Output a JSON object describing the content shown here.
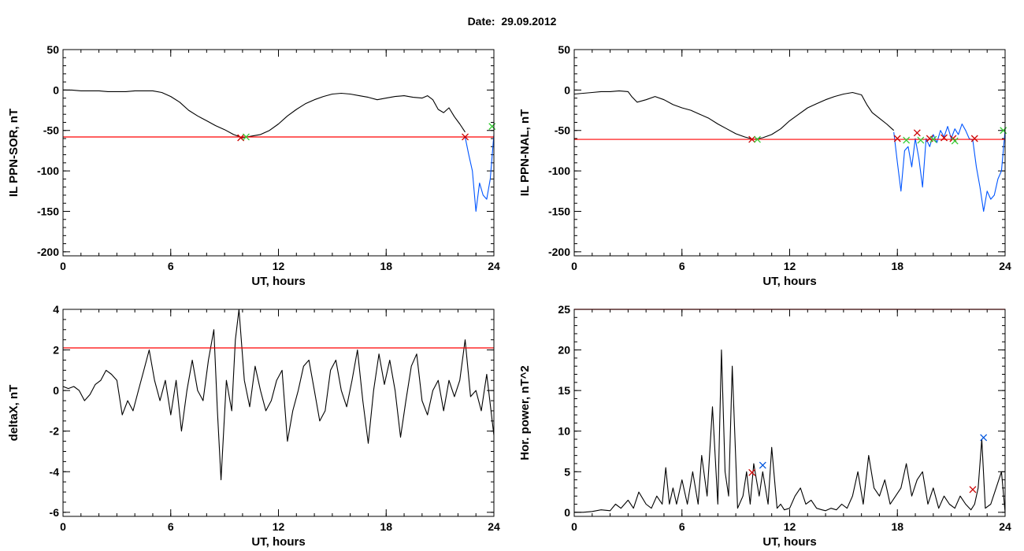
{
  "header": {
    "date_label": "Date:  29.09.2012"
  },
  "colors": {
    "trace": "#000000",
    "threshold": "#ff0000",
    "storm": "#0055ff",
    "marker_red": "#cc0000",
    "marker_green": "#33cc33",
    "marker_blue": "#0055dd"
  },
  "chart_data": [
    {
      "id": "sor",
      "type": "line",
      "ylabel": "IL PPN-SOR, nT",
      "xlabel": "UT, hours",
      "xlim": [
        0,
        24
      ],
      "ylim": [
        -205,
        50
      ],
      "xticks": [
        0,
        6,
        12,
        18,
        24
      ],
      "xtick_labels": [
        "0",
        "6",
        "12",
        "18",
        "24"
      ],
      "yticks": [
        50,
        0,
        -50,
        -100,
        -150,
        -200
      ],
      "ytick_labels": [
        "50",
        "0",
        "-50",
        "-100",
        "-150",
        "-200"
      ],
      "x_minor": 1,
      "y_minor": 10,
      "threshold": -58,
      "series": [
        {
          "role": "main",
          "color_key": "trace",
          "x": [
            0,
            0.5,
            1,
            1.5,
            2,
            2.5,
            3,
            3.5,
            4,
            4.5,
            5,
            5.5,
            6,
            6.5,
            7,
            7.5,
            8,
            8.5,
            9,
            9.5,
            10,
            10.5,
            11,
            11.5,
            12,
            12.5,
            13,
            13.5,
            14,
            14.5,
            15,
            15.5,
            16,
            16.5,
            17,
            17.5,
            18,
            18.5,
            19,
            19.5,
            20,
            20.3,
            20.6,
            20.9,
            21.2,
            21.5,
            21.8,
            22.1,
            22.4
          ],
          "y": [
            0,
            0,
            -1,
            -1,
            -1,
            -2,
            -2,
            -2,
            -1,
            -1,
            -1,
            -3,
            -8,
            -15,
            -25,
            -32,
            -38,
            -44,
            -49,
            -55,
            -59,
            -57,
            -55,
            -50,
            -42,
            -32,
            -24,
            -17,
            -12,
            -8,
            -5,
            -4,
            -5,
            -7,
            -9,
            -12,
            -10,
            -8,
            -7,
            -9,
            -10,
            -7,
            -12,
            -24,
            -28,
            -22,
            -33,
            -42,
            -52
          ]
        },
        {
          "role": "storm",
          "color_key": "storm",
          "x": [
            22.4,
            22.6,
            22.8,
            23,
            23.2,
            23.4,
            23.6,
            23.8,
            24
          ],
          "y": [
            -58,
            -80,
            -100,
            -150,
            -115,
            -130,
            -135,
            -110,
            -55
          ]
        }
      ],
      "markers": [
        {
          "x": 9.9,
          "y": -59,
          "color_key": "marker_red"
        },
        {
          "x": 10.2,
          "y": -58,
          "color_key": "marker_green"
        },
        {
          "x": 22.4,
          "y": -58,
          "color_key": "marker_red"
        },
        {
          "x": 23.9,
          "y": -45,
          "color_key": "marker_green"
        }
      ]
    },
    {
      "id": "nal",
      "type": "line",
      "ylabel": "IL PPN-NAL, nT",
      "xlabel": "UT, hours",
      "xlim": [
        0,
        24
      ],
      "ylim": [
        -205,
        50
      ],
      "xticks": [
        0,
        6,
        12,
        18,
        24
      ],
      "xtick_labels": [
        "0",
        "6",
        "12",
        "18",
        "24"
      ],
      "yticks": [
        50,
        0,
        -50,
        -100,
        -150,
        -200
      ],
      "ytick_labels": [
        "50",
        "0",
        "-50",
        "-100",
        "-150",
        "-200"
      ],
      "x_minor": 1,
      "y_minor": 10,
      "threshold": -61,
      "series": [
        {
          "role": "main",
          "color_key": "trace",
          "x": [
            0,
            0.5,
            1,
            1.5,
            2,
            2.5,
            3,
            3.2,
            3.5,
            4,
            4.5,
            5,
            5.5,
            6,
            6.5,
            7,
            7.5,
            8,
            8.5,
            9,
            9.5,
            10,
            10.5,
            11,
            11.5,
            12,
            12.5,
            13,
            13.5,
            14,
            14.5,
            15,
            15.5,
            16,
            16.3,
            16.6,
            17,
            17.4,
            17.8
          ],
          "y": [
            -5,
            -4,
            -3,
            -2,
            -2,
            -1,
            -2,
            -8,
            -15,
            -12,
            -8,
            -12,
            -18,
            -22,
            -25,
            -30,
            -35,
            -42,
            -48,
            -54,
            -58,
            -61,
            -59,
            -55,
            -48,
            -38,
            -30,
            -22,
            -17,
            -12,
            -8,
            -5,
            -3,
            -6,
            -18,
            -28,
            -35,
            -42,
            -50
          ]
        },
        {
          "role": "storm",
          "color_key": "storm",
          "x": [
            17.8,
            18,
            18.2,
            18.4,
            18.6,
            18.8,
            19,
            19.2,
            19.4,
            19.6,
            19.8,
            20,
            20.2,
            20.4,
            20.6,
            20.8,
            21,
            21.2,
            21.4,
            21.6,
            21.8,
            22,
            22.2,
            22.4,
            22.6,
            22.8,
            23,
            23.2,
            23.4,
            23.6,
            23.8,
            24
          ],
          "y": [
            -52,
            -90,
            -125,
            -75,
            -70,
            -95,
            -60,
            -85,
            -120,
            -60,
            -70,
            -55,
            -65,
            -50,
            -58,
            -45,
            -60,
            -48,
            -55,
            -42,
            -50,
            -60,
            -62,
            -95,
            -120,
            -150,
            -125,
            -135,
            -130,
            -110,
            -100,
            -50
          ]
        }
      ],
      "markers": [
        {
          "x": 9.9,
          "y": -61,
          "color_key": "marker_red"
        },
        {
          "x": 10.2,
          "y": -61,
          "color_key": "marker_green"
        },
        {
          "x": 18.0,
          "y": -60,
          "color_key": "marker_red"
        },
        {
          "x": 18.5,
          "y": -62,
          "color_key": "marker_green"
        },
        {
          "x": 19.1,
          "y": -53,
          "color_key": "marker_red"
        },
        {
          "x": 19.3,
          "y": -62,
          "color_key": "marker_green"
        },
        {
          "x": 19.8,
          "y": -60,
          "color_key": "marker_red"
        },
        {
          "x": 20.0,
          "y": -61,
          "color_key": "marker_green"
        },
        {
          "x": 20.6,
          "y": -59,
          "color_key": "marker_red"
        },
        {
          "x": 21.1,
          "y": -60,
          "color_key": "marker_red"
        },
        {
          "x": 21.2,
          "y": -63,
          "color_key": "marker_green"
        },
        {
          "x": 22.3,
          "y": -60,
          "color_key": "marker_red"
        },
        {
          "x": 23.9,
          "y": -50,
          "color_key": "marker_green"
        }
      ]
    },
    {
      "id": "deltax",
      "type": "line",
      "ylabel": "deltaX, nT",
      "xlabel": "UT, hours",
      "xlim": [
        0,
        24
      ],
      "ylim": [
        -6.2,
        4
      ],
      "xticks": [
        0,
        6,
        12,
        18,
        24
      ],
      "xtick_labels": [
        "0",
        "6",
        "12",
        "18",
        "24"
      ],
      "yticks": [
        4,
        2,
        0,
        -2,
        -4,
        -6
      ],
      "ytick_labels": [
        "4",
        "2",
        "0",
        "-2",
        "-4",
        "-6"
      ],
      "x_minor": 1,
      "y_minor": 0.5,
      "threshold": 2.1,
      "series": [
        {
          "role": "main",
          "color_key": "trace",
          "x": [
            0,
            0.3,
            0.6,
            0.9,
            1.2,
            1.5,
            1.8,
            2.1,
            2.4,
            2.7,
            3,
            3.3,
            3.6,
            3.9,
            4.2,
            4.5,
            4.8,
            5.1,
            5.4,
            5.7,
            6,
            6.3,
            6.6,
            6.9,
            7.2,
            7.5,
            7.8,
            8.1,
            8.4,
            8.6,
            8.8,
            9.1,
            9.4,
            9.6,
            9.8,
            10.1,
            10.4,
            10.7,
            11,
            11.3,
            11.6,
            11.9,
            12.2,
            12.5,
            12.8,
            13.1,
            13.4,
            13.7,
            14,
            14.3,
            14.6,
            14.9,
            15.2,
            15.5,
            15.8,
            16.1,
            16.4,
            16.7,
            17,
            17.3,
            17.6,
            17.9,
            18.2,
            18.5,
            18.8,
            19.1,
            19.4,
            19.7,
            20,
            20.3,
            20.6,
            20.9,
            21.2,
            21.5,
            21.8,
            22.1,
            22.4,
            22.7,
            23,
            23.3,
            23.6,
            24
          ],
          "y": [
            0.2,
            0.1,
            0.2,
            0,
            -0.5,
            -0.2,
            0.3,
            0.5,
            1,
            0.8,
            0.5,
            -1.2,
            -0.5,
            -1,
            0,
            1,
            2,
            0.5,
            -0.5,
            0.5,
            -1.2,
            0.5,
            -2,
            0,
            1.5,
            0,
            -0.5,
            1.5,
            3,
            -1,
            -4.4,
            0.5,
            -1,
            2.5,
            4,
            0.5,
            -0.8,
            1.2,
            0,
            -1,
            -0.5,
            0.5,
            1,
            -2.5,
            -1,
            0,
            1.2,
            1.5,
            0,
            -1.5,
            -1,
            1,
            1.5,
            0,
            -0.8,
            0.5,
            2,
            -0.5,
            -2.6,
            0,
            1.8,
            0.3,
            1.5,
            0,
            -2.3,
            -0.5,
            1.2,
            1.8,
            -0.5,
            -1.2,
            0,
            0.5,
            -1,
            0.5,
            -0.3,
            0.5,
            2.5,
            -0.3,
            0,
            -1,
            0.8,
            -2.2
          ]
        }
      ],
      "markers": []
    },
    {
      "id": "power",
      "type": "line",
      "ylabel": "Hor. power, nT^2",
      "xlabel": "UT, hours",
      "xlim": [
        0,
        24
      ],
      "ylim": [
        -0.5,
        25
      ],
      "xticks": [
        0,
        6,
        12,
        18,
        24
      ],
      "xtick_labels": [
        "0",
        "6",
        "12",
        "18",
        "24"
      ],
      "yticks": [
        25,
        20,
        15,
        10,
        5,
        0
      ],
      "ytick_labels": [
        "25",
        "20",
        "15",
        "10",
        "5",
        "0"
      ],
      "x_minor": 1,
      "y_minor": 1,
      "threshold": 25,
      "series": [
        {
          "role": "main",
          "color_key": "trace",
          "x": [
            0,
            0.5,
            1,
            1.5,
            2,
            2.3,
            2.6,
            3,
            3.3,
            3.6,
            4,
            4.3,
            4.6,
            4.9,
            5.1,
            5.3,
            5.5,
            5.7,
            6,
            6.3,
            6.6,
            6.9,
            7.1,
            7.4,
            7.7,
            8,
            8.2,
            8.4,
            8.6,
            8.8,
            9.1,
            9.4,
            9.6,
            9.8,
            10,
            10.3,
            10.5,
            10.8,
            11,
            11.3,
            11.5,
            11.7,
            12,
            12.3,
            12.6,
            12.9,
            13.2,
            13.5,
            13.8,
            14,
            14.3,
            14.6,
            14.9,
            15.2,
            15.5,
            15.8,
            16.1,
            16.4,
            16.7,
            17,
            17.3,
            17.6,
            17.9,
            18.2,
            18.5,
            18.8,
            19.1,
            19.4,
            19.7,
            20,
            20.3,
            20.6,
            20.9,
            21.2,
            21.5,
            21.8,
            22.1,
            22.3,
            22.5,
            22.7,
            22.9,
            23.2,
            23.5,
            23.8,
            24
          ],
          "y": [
            0,
            0,
            0.1,
            0.3,
            0.2,
            1,
            0.5,
            1.5,
            0.5,
            2.5,
            1,
            0.5,
            2,
            1,
            5.5,
            1,
            3,
            1,
            4,
            1,
            5,
            1,
            7,
            2,
            13,
            1,
            20,
            5,
            2,
            18,
            0.5,
            2,
            5,
            1,
            6,
            2,
            5,
            1,
            8,
            0.5,
            1,
            0.3,
            0.5,
            2,
            3,
            1,
            1.5,
            0.5,
            0.3,
            0.2,
            0.5,
            0.3,
            1,
            0.5,
            2,
            5,
            1,
            7,
            3,
            2,
            4,
            1,
            2,
            3,
            6,
            2,
            4,
            5,
            1,
            3,
            0.5,
            2,
            1,
            0.5,
            2,
            1,
            0.3,
            1,
            3,
            9,
            0.5,
            1,
            3,
            5,
            0
          ]
        }
      ],
      "markers": [
        {
          "x": 9.9,
          "y": 4.9,
          "color_key": "marker_red"
        },
        {
          "x": 10.5,
          "y": 5.8,
          "color_key": "marker_blue"
        },
        {
          "x": 22.2,
          "y": 2.8,
          "color_key": "marker_red"
        },
        {
          "x": 22.8,
          "y": 9.2,
          "color_key": "marker_blue"
        }
      ]
    }
  ]
}
